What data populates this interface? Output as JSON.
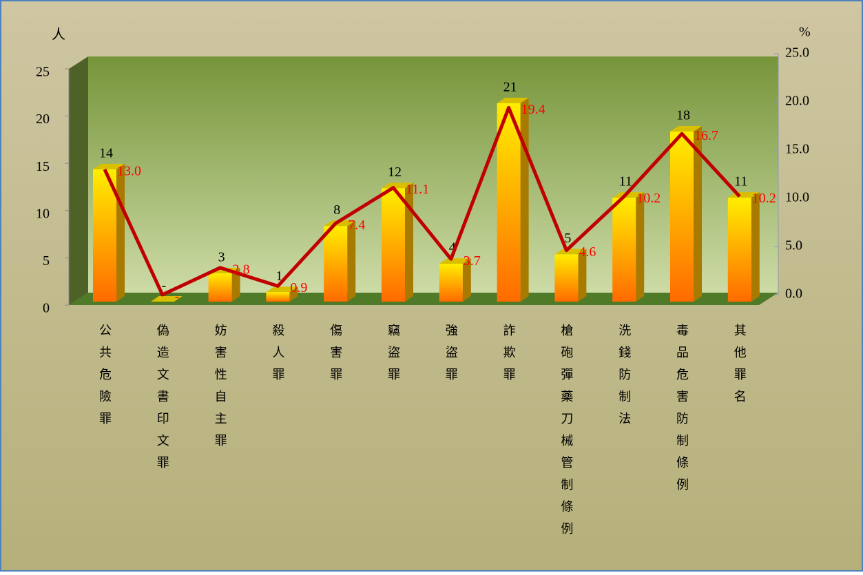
{
  "chart_data": {
    "type": "bar",
    "y_label": "人",
    "y2_label": "%",
    "categories": [
      "公共危險罪",
      "偽造文書印文罪",
      "妨害性自主罪",
      "殺人罪",
      "傷害罪",
      "竊盜罪",
      "強盜罪",
      "詐欺罪",
      "槍砲彈藥刀械管制條例",
      "洗錢防制法",
      "毒品危害防制條例",
      "其他罪名"
    ],
    "series": [
      {
        "color": "#ff9a00",
        "values": [
          14,
          0,
          3,
          1,
          8,
          12,
          4,
          21,
          5,
          11,
          18,
          11
        ],
        "value_labels": [
          "14",
          "-",
          "3",
          "1",
          "8",
          "12",
          "4",
          "21",
          "5",
          "11",
          "18",
          "11"
        ]
      },
      {
        "type": "line",
        "axis": "y2",
        "color": "#c00000",
        "label_color": "#ff0000",
        "values": [
          13.0,
          0,
          2.8,
          0.9,
          7.4,
          11.1,
          3.7,
          19.4,
          4.6,
          10.2,
          16.7,
          10.2
        ],
        "value_labels": [
          "13.0",
          "-",
          "2.8",
          "0.9",
          "7.4",
          "11.1",
          "3.7",
          "19.4",
          "4.6",
          "10.2",
          "16.7",
          "10.2"
        ]
      }
    ],
    "ylim": [
      0,
      25
    ],
    "yticks": [
      0,
      5,
      10,
      15,
      20,
      25
    ],
    "y2lim": [
      0,
      25
    ],
    "y2ticks": [
      {
        "value": 0,
        "label": "0.0"
      },
      {
        "value": 5,
        "label": "5.0"
      },
      {
        "value": 10,
        "label": "10.0"
      },
      {
        "value": 15,
        "label": "15.0"
      },
      {
        "value": 20,
        "label": "20.0"
      },
      {
        "value": 25,
        "label": "25.0"
      }
    ]
  }
}
